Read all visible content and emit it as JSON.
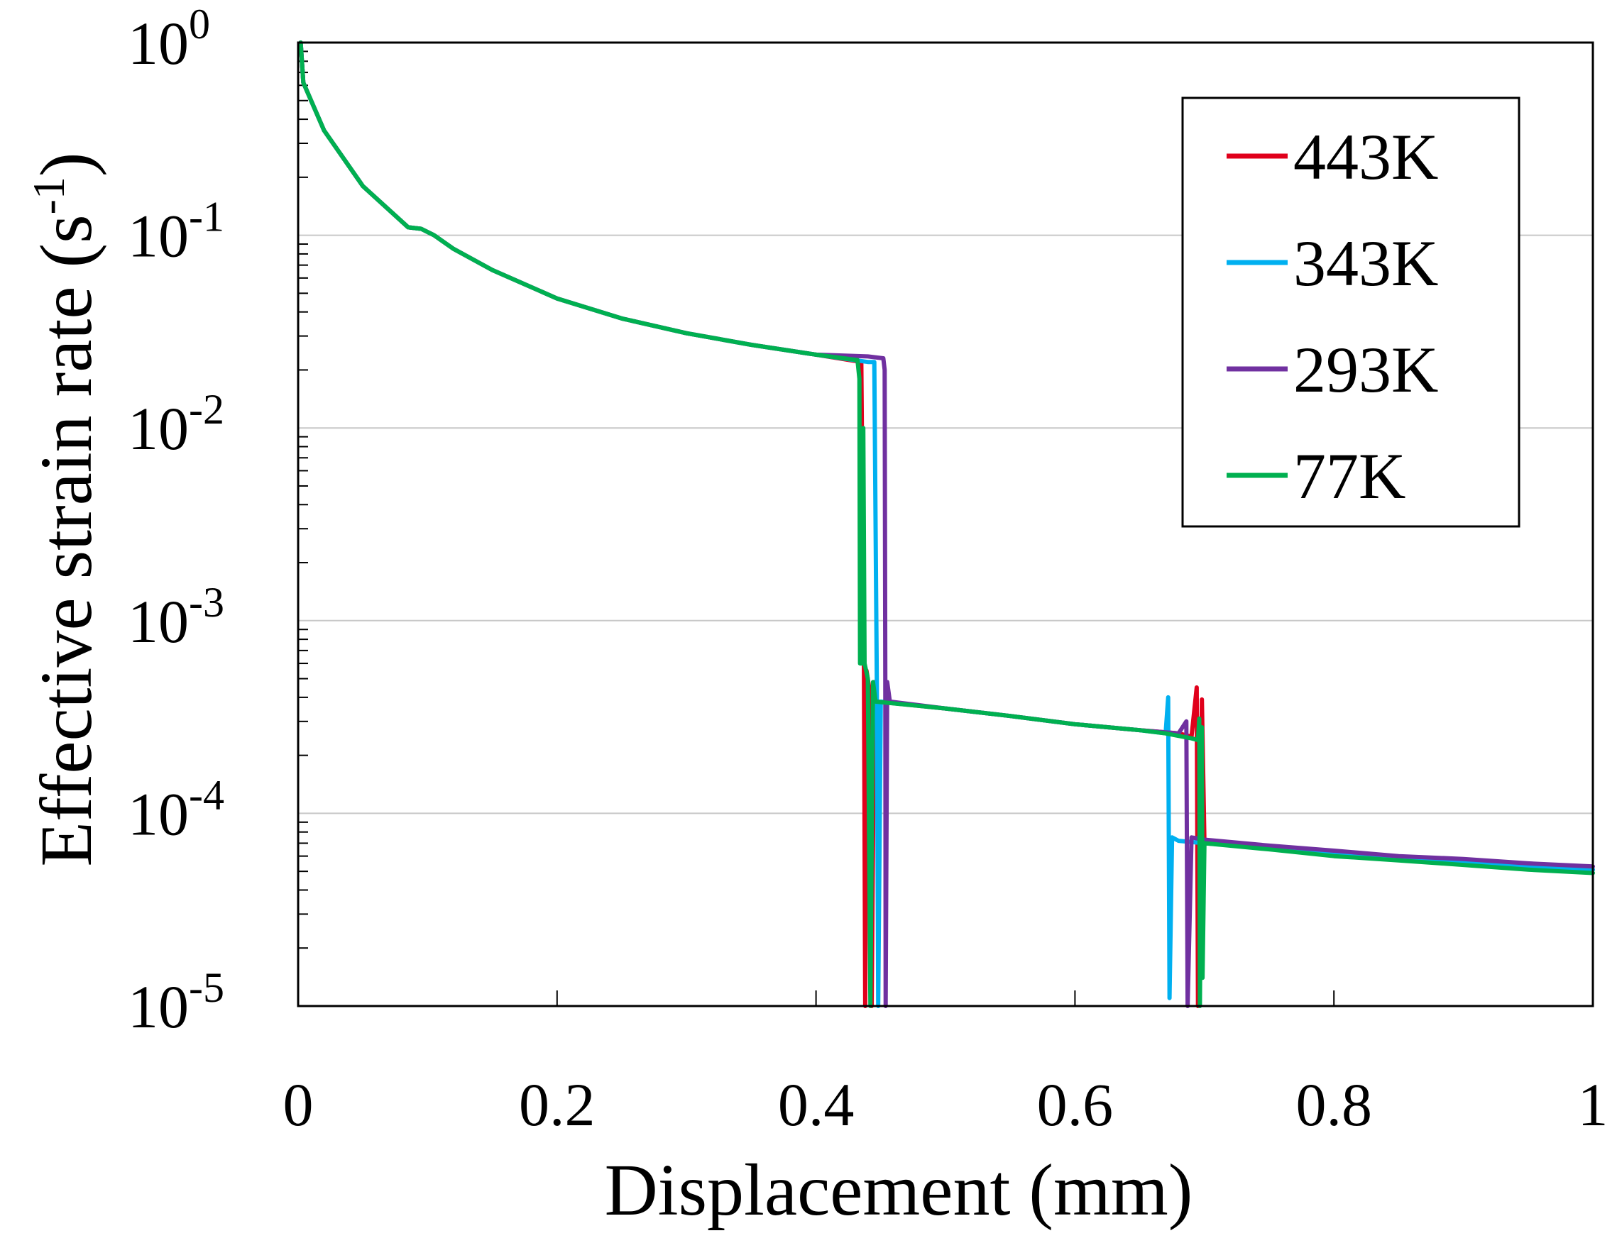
{
  "chart_data": {
    "type": "line",
    "title": "",
    "xlabel": "Displacement (mm)",
    "ylabel": "Effective strain rate",
    "ylabel_unit_base": "s",
    "ylabel_unit_exp": "-1",
    "xlim": [
      0,
      1
    ],
    "ylim": [
      1e-05,
      1
    ],
    "yscale": "log",
    "grid": "horizontal",
    "legend_position": "top-right",
    "x_ticks": [
      {
        "value": 0,
        "label": "0"
      },
      {
        "value": 0.2,
        "label": "0.2"
      },
      {
        "value": 0.4,
        "label": "0.4"
      },
      {
        "value": 0.6,
        "label": "0.6"
      },
      {
        "value": 0.8,
        "label": "0.8"
      },
      {
        "value": 1,
        "label": "1"
      }
    ],
    "y_ticks": [
      {
        "value": 1,
        "base": "10",
        "exp": "0"
      },
      {
        "value": 0.1,
        "base": "10",
        "exp": "-1"
      },
      {
        "value": 0.01,
        "base": "10",
        "exp": "-2"
      },
      {
        "value": 0.001,
        "base": "10",
        "exp": "-3"
      },
      {
        "value": 0.0001,
        "base": "10",
        "exp": "-4"
      },
      {
        "value": 1e-05,
        "base": "10",
        "exp": "-5"
      }
    ],
    "series": [
      {
        "name": "443K",
        "color": "#e0001b",
        "points": [
          [
            0.002,
            1.0
          ],
          [
            0.004,
            0.62
          ],
          [
            0.02,
            0.35
          ],
          [
            0.05,
            0.18
          ],
          [
            0.085,
            0.11
          ],
          [
            0.095,
            0.108
          ],
          [
            0.105,
            0.1
          ],
          [
            0.12,
            0.085
          ],
          [
            0.15,
            0.066
          ],
          [
            0.2,
            0.047
          ],
          [
            0.25,
            0.037
          ],
          [
            0.3,
            0.031
          ],
          [
            0.35,
            0.027
          ],
          [
            0.4,
            0.024
          ],
          [
            0.435,
            0.022
          ],
          [
            0.437,
            0.00055
          ],
          [
            0.438,
            1e-05
          ],
          [
            0.439,
            0.00055
          ],
          [
            0.441,
            0.00045
          ],
          [
            0.443,
            1e-05
          ],
          [
            0.445,
            0.00048
          ],
          [
            0.447,
            0.00038
          ],
          [
            0.5,
            0.00035
          ],
          [
            0.55,
            0.00032
          ],
          [
            0.6,
            0.00029
          ],
          [
            0.65,
            0.00027
          ],
          [
            0.68,
            0.00026
          ],
          [
            0.69,
            0.00025
          ],
          [
            0.694,
            0.00045
          ],
          [
            0.695,
            1e-05
          ],
          [
            0.698,
            0.00039
          ],
          [
            0.7,
            7e-05
          ],
          [
            0.75,
            6.6e-05
          ],
          [
            0.8,
            6.2e-05
          ],
          [
            0.85,
            5.9e-05
          ],
          [
            0.9,
            5.6e-05
          ],
          [
            0.95,
            5.3e-05
          ],
          [
            1.0,
            5.1e-05
          ]
        ]
      },
      {
        "name": "343K",
        "color": "#00b0f0",
        "points": [
          [
            0.002,
            1.0
          ],
          [
            0.004,
            0.62
          ],
          [
            0.02,
            0.35
          ],
          [
            0.05,
            0.18
          ],
          [
            0.085,
            0.11
          ],
          [
            0.095,
            0.108
          ],
          [
            0.105,
            0.1
          ],
          [
            0.12,
            0.085
          ],
          [
            0.15,
            0.066
          ],
          [
            0.2,
            0.047
          ],
          [
            0.25,
            0.037
          ],
          [
            0.3,
            0.031
          ],
          [
            0.35,
            0.027
          ],
          [
            0.4,
            0.024
          ],
          [
            0.44,
            0.022
          ],
          [
            0.445,
            0.022
          ],
          [
            0.447,
            0.00045
          ],
          [
            0.448,
            1e-05
          ],
          [
            0.45,
            0.00038
          ],
          [
            0.5,
            0.00035
          ],
          [
            0.55,
            0.00032
          ],
          [
            0.6,
            0.00029
          ],
          [
            0.65,
            0.00027
          ],
          [
            0.67,
            0.00026
          ],
          [
            0.672,
            0.0004
          ],
          [
            0.673,
            1.1e-05
          ],
          [
            0.675,
            7.5e-05
          ],
          [
            0.68,
            7.2e-05
          ],
          [
            0.7,
            7e-05
          ],
          [
            0.75,
            6.6e-05
          ],
          [
            0.8,
            6.2e-05
          ],
          [
            0.85,
            5.9e-05
          ],
          [
            0.9,
            5.6e-05
          ],
          [
            0.95,
            5.3e-05
          ],
          [
            1.0,
            5.1e-05
          ]
        ]
      },
      {
        "name": "293K",
        "color": "#7030a0",
        "points": [
          [
            0.002,
            1.0
          ],
          [
            0.004,
            0.62
          ],
          [
            0.02,
            0.35
          ],
          [
            0.05,
            0.18
          ],
          [
            0.085,
            0.11
          ],
          [
            0.095,
            0.108
          ],
          [
            0.105,
            0.1
          ],
          [
            0.12,
            0.085
          ],
          [
            0.15,
            0.066
          ],
          [
            0.2,
            0.047
          ],
          [
            0.25,
            0.037
          ],
          [
            0.3,
            0.031
          ],
          [
            0.35,
            0.027
          ],
          [
            0.4,
            0.024
          ],
          [
            0.44,
            0.0235
          ],
          [
            0.452,
            0.023
          ],
          [
            0.453,
            0.02
          ],
          [
            0.4535,
            0.0005
          ],
          [
            0.4538,
            1e-05
          ],
          [
            0.455,
            0.00048
          ],
          [
            0.457,
            0.00038
          ],
          [
            0.5,
            0.00035
          ],
          [
            0.55,
            0.00032
          ],
          [
            0.6,
            0.00029
          ],
          [
            0.65,
            0.00027
          ],
          [
            0.68,
            0.00026
          ],
          [
            0.686,
            0.0003
          ],
          [
            0.687,
            1e-05
          ],
          [
            0.69,
            7.5e-05
          ],
          [
            0.7,
            7.3e-05
          ],
          [
            0.75,
            6.8e-05
          ],
          [
            0.8,
            6.4e-05
          ],
          [
            0.85,
            6e-05
          ],
          [
            0.9,
            5.8e-05
          ],
          [
            0.95,
            5.5e-05
          ],
          [
            1.0,
            5.3e-05
          ]
        ]
      },
      {
        "name": "77K",
        "color": "#00b050",
        "points": [
          [
            0.002,
            1.0
          ],
          [
            0.004,
            0.62
          ],
          [
            0.02,
            0.35
          ],
          [
            0.05,
            0.18
          ],
          [
            0.085,
            0.11
          ],
          [
            0.095,
            0.108
          ],
          [
            0.105,
            0.1
          ],
          [
            0.12,
            0.085
          ],
          [
            0.15,
            0.066
          ],
          [
            0.2,
            0.047
          ],
          [
            0.25,
            0.037
          ],
          [
            0.3,
            0.031
          ],
          [
            0.35,
            0.027
          ],
          [
            0.4,
            0.024
          ],
          [
            0.432,
            0.0225
          ],
          [
            0.4335,
            0.018
          ],
          [
            0.434,
            0.0006
          ],
          [
            0.436,
            0.0006
          ],
          [
            0.4365,
            0.01
          ],
          [
            0.437,
            0.0025
          ],
          [
            0.4375,
            0.0006
          ],
          [
            0.44,
            0.0005
          ],
          [
            0.442,
            1e-05
          ],
          [
            0.444,
            0.00048
          ],
          [
            0.446,
            0.00038
          ],
          [
            0.5,
            0.00035
          ],
          [
            0.55,
            0.00032
          ],
          [
            0.6,
            0.00029
          ],
          [
            0.65,
            0.00027
          ],
          [
            0.67,
            0.00026
          ],
          [
            0.69,
            0.000245
          ],
          [
            0.695,
            0.00024
          ],
          [
            0.696,
            0.00031
          ],
          [
            0.6965,
            1e-05
          ],
          [
            0.698,
            0.00028
          ],
          [
            0.6985,
            1.4e-05
          ],
          [
            0.7,
            7e-05
          ],
          [
            0.75,
            6.5e-05
          ],
          [
            0.8,
            6e-05
          ],
          [
            0.85,
            5.7e-05
          ],
          [
            0.9,
            5.4e-05
          ],
          [
            0.95,
            5.1e-05
          ],
          [
            1.0,
            4.9e-05
          ]
        ]
      }
    ]
  }
}
